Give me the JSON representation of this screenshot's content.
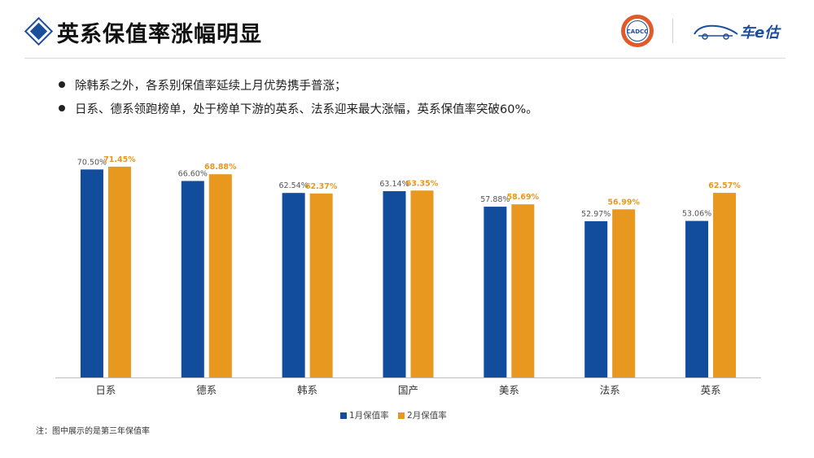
{
  "header": {
    "title": "英系保值率涨幅明显",
    "cadcc_logo_text": "CADCC",
    "car_logo_text": "车e估"
  },
  "bullets": [
    "除韩系之外，各系别保值率延续上月优势携手普涨；",
    "日系、德系领跑榜单，处于榜单下游的英系、法系迎来最大涨幅，英系保值率突破60%。"
  ],
  "footnote": "注：图中展示的是第三年保值率",
  "colors": {
    "series1": "#124c9c",
    "series2": "#e8971f",
    "title_accent": "#1b4f9b"
  },
  "chart_data": {
    "type": "bar",
    "title": "",
    "xlabel": "",
    "ylabel": "",
    "grid": false,
    "legend": "bottom-center",
    "ylim": [
      0,
      75
    ],
    "categories": [
      "日系",
      "德系",
      "韩系",
      "国产",
      "美系",
      "法系",
      "英系"
    ],
    "series": [
      {
        "name": "1月保值率",
        "values": [
          70.5,
          66.6,
          62.54,
          63.14,
          57.88,
          52.97,
          53.06
        ],
        "labels": [
          "70.50%",
          "66.60%",
          "62.54%",
          "63.14%",
          "57.88%",
          "52.97%",
          "53.06%"
        ]
      },
      {
        "name": "2月保值率",
        "values": [
          71.45,
          68.88,
          62.37,
          63.35,
          58.69,
          56.99,
          62.57
        ],
        "labels": [
          "71.45%",
          "68.88%",
          "62.37%",
          "63.35%",
          "58.69%",
          "56.99%",
          "62.57%"
        ]
      }
    ]
  }
}
